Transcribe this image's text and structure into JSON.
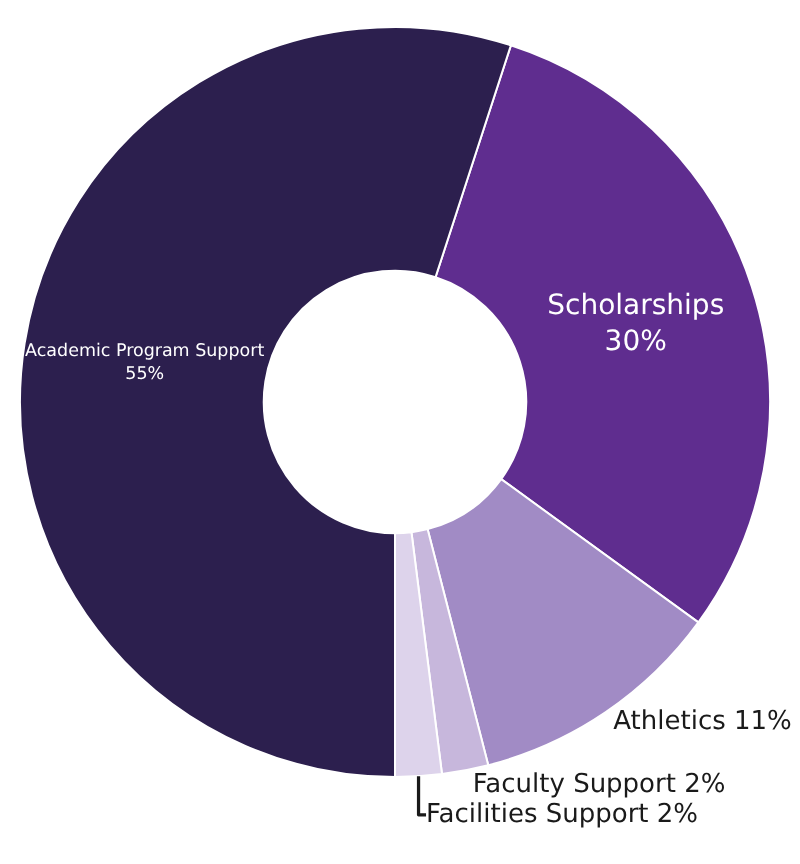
{
  "chart_data": {
    "type": "donut",
    "categories": [
      "Scholarships",
      "Athletics",
      "Faculty Support",
      "Facilities Support",
      "Academic Program Support"
    ],
    "values": [
      30,
      11,
      2,
      2,
      55
    ],
    "value_labels": [
      "30%",
      "11%",
      "2%",
      "2%",
      "55%"
    ],
    "colors": [
      "#5f2d8f",
      "#a18bc5",
      "#c7b7dc",
      "#ddd3eb",
      "#2c1f4e"
    ],
    "legend": false
  }
}
